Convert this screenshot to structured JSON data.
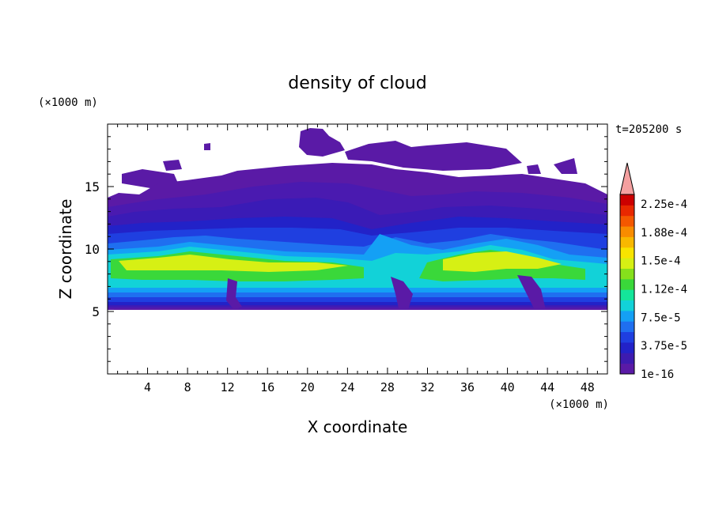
{
  "chart_data": {
    "type": "heatmap",
    "title": "density of cloud",
    "xlabel": "X coordinate",
    "ylabel": "Z coordinate",
    "x_unit": "(×1000 m)",
    "y_unit": "(×1000 m)",
    "time_label": "t=205200 s",
    "xlim": [
      0,
      50
    ],
    "ylim": [
      0,
      20
    ],
    "x_ticks": [
      "4",
      "8",
      "12",
      "16",
      "20",
      "24",
      "28",
      "32",
      "36",
      "40",
      "44",
      "48"
    ],
    "y_ticks": [
      "5",
      "10",
      "15"
    ],
    "colorbar": {
      "levels": [
        "1e-16",
        "3.75e-5",
        "7.5e-5",
        "1.12e-4",
        "1.5e-4",
        "1.88e-4",
        "2.25e-4"
      ],
      "colors": [
        "#5a1aa6",
        "#3d1bb0",
        "#2222c8",
        "#1f3fe0",
        "#1f6ff0",
        "#14a0f5",
        "#12d2d8",
        "#14e69a",
        "#3ad83a",
        "#86e01c",
        "#d6f014",
        "#f8e400",
        "#f8b800",
        "#f88c00",
        "#f45800",
        "#e82800",
        "#cc0000"
      ],
      "extend_color": "#f4a0a0"
    },
    "features": {
      "cloud_base_km": 5.2,
      "dense_layer_km": [
        7.5,
        10
      ],
      "cloud_top_km": 17
    }
  }
}
